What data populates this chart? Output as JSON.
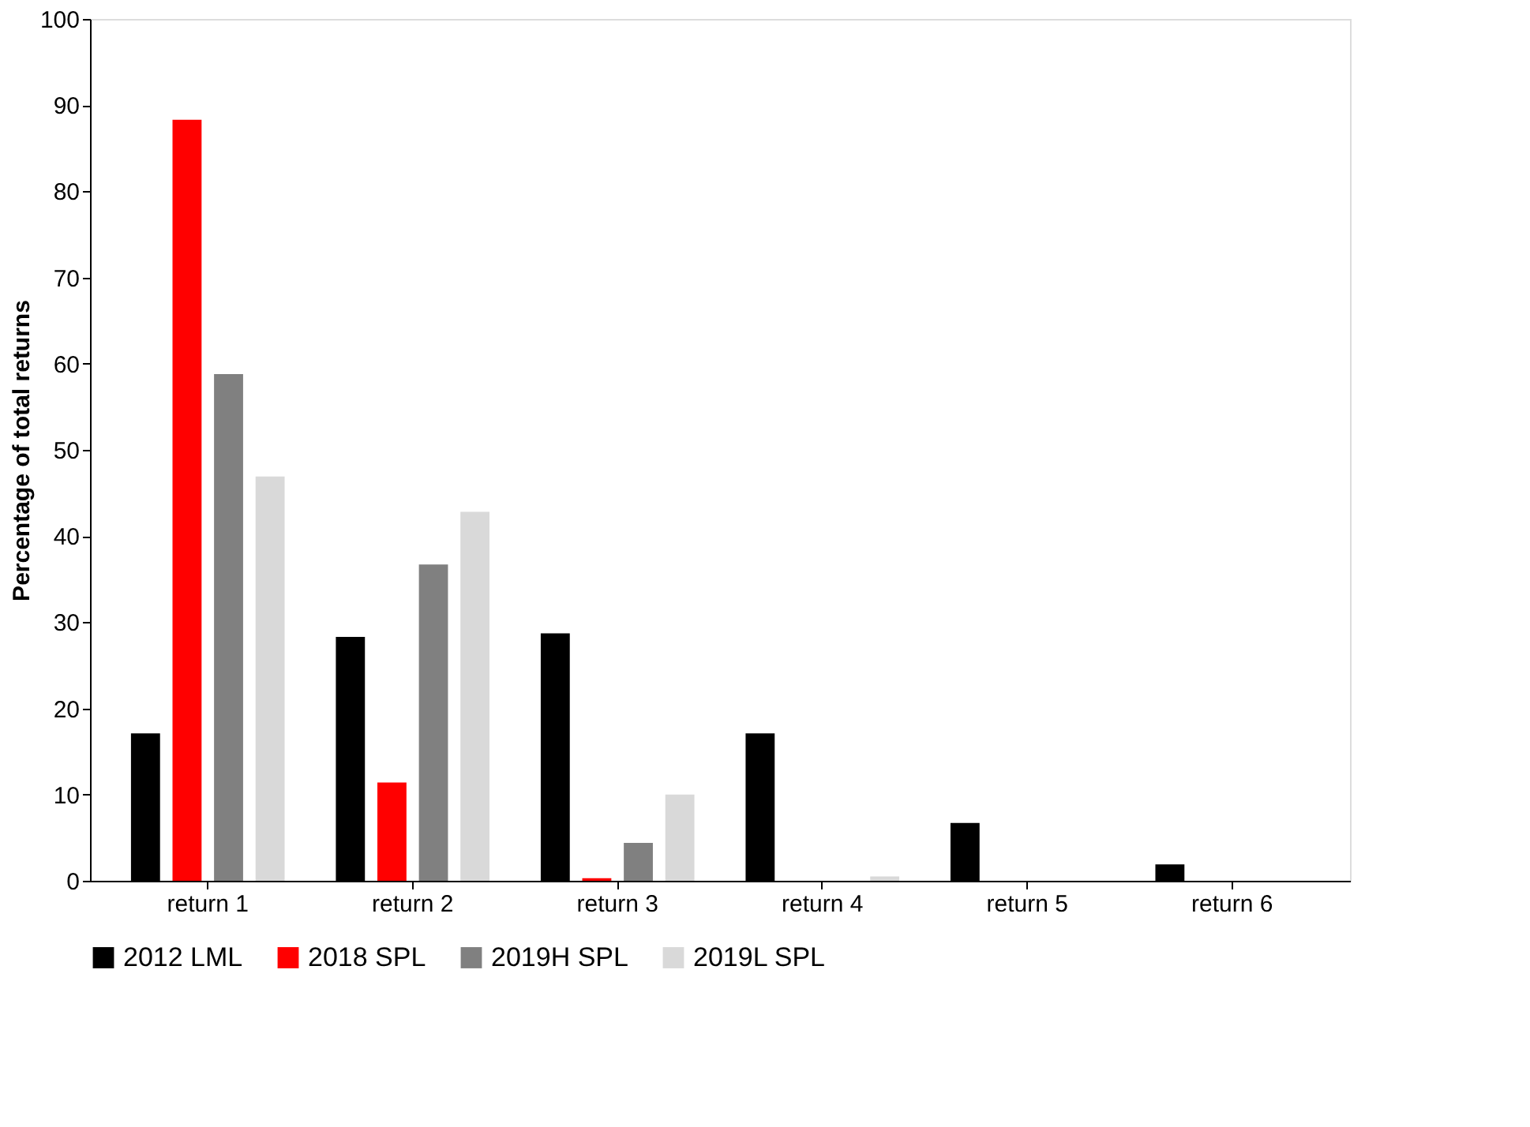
{
  "chart_data": {
    "type": "bar",
    "ylabel": "Percentage of total returns",
    "categories": [
      "return 1",
      "return 2",
      "return 3",
      "return 4",
      "return 5",
      "return 6"
    ],
    "series": [
      {
        "name": "2012 LML",
        "color": "#000000",
        "values": [
          17.1,
          28.3,
          28.7,
          17.1,
          6.7,
          1.9
        ]
      },
      {
        "name": "2018 SPL",
        "color": "#ff0000",
        "values": [
          88.3,
          11.4,
          0.3,
          0,
          0,
          0
        ]
      },
      {
        "name": "2019H SPL",
        "color": "#808080",
        "values": [
          58.8,
          36.7,
          4.4,
          0,
          0,
          0
        ]
      },
      {
        "name": "2019L SPL",
        "color": "#d9d9d9",
        "values": [
          46.9,
          42.8,
          10,
          0.5,
          0,
          0
        ]
      }
    ],
    "ylim": [
      0,
      100
    ],
    "yticks": [
      0,
      10,
      20,
      30,
      40,
      50,
      60,
      70,
      80,
      90,
      100
    ],
    "grid": false,
    "legend": "bottom"
  }
}
